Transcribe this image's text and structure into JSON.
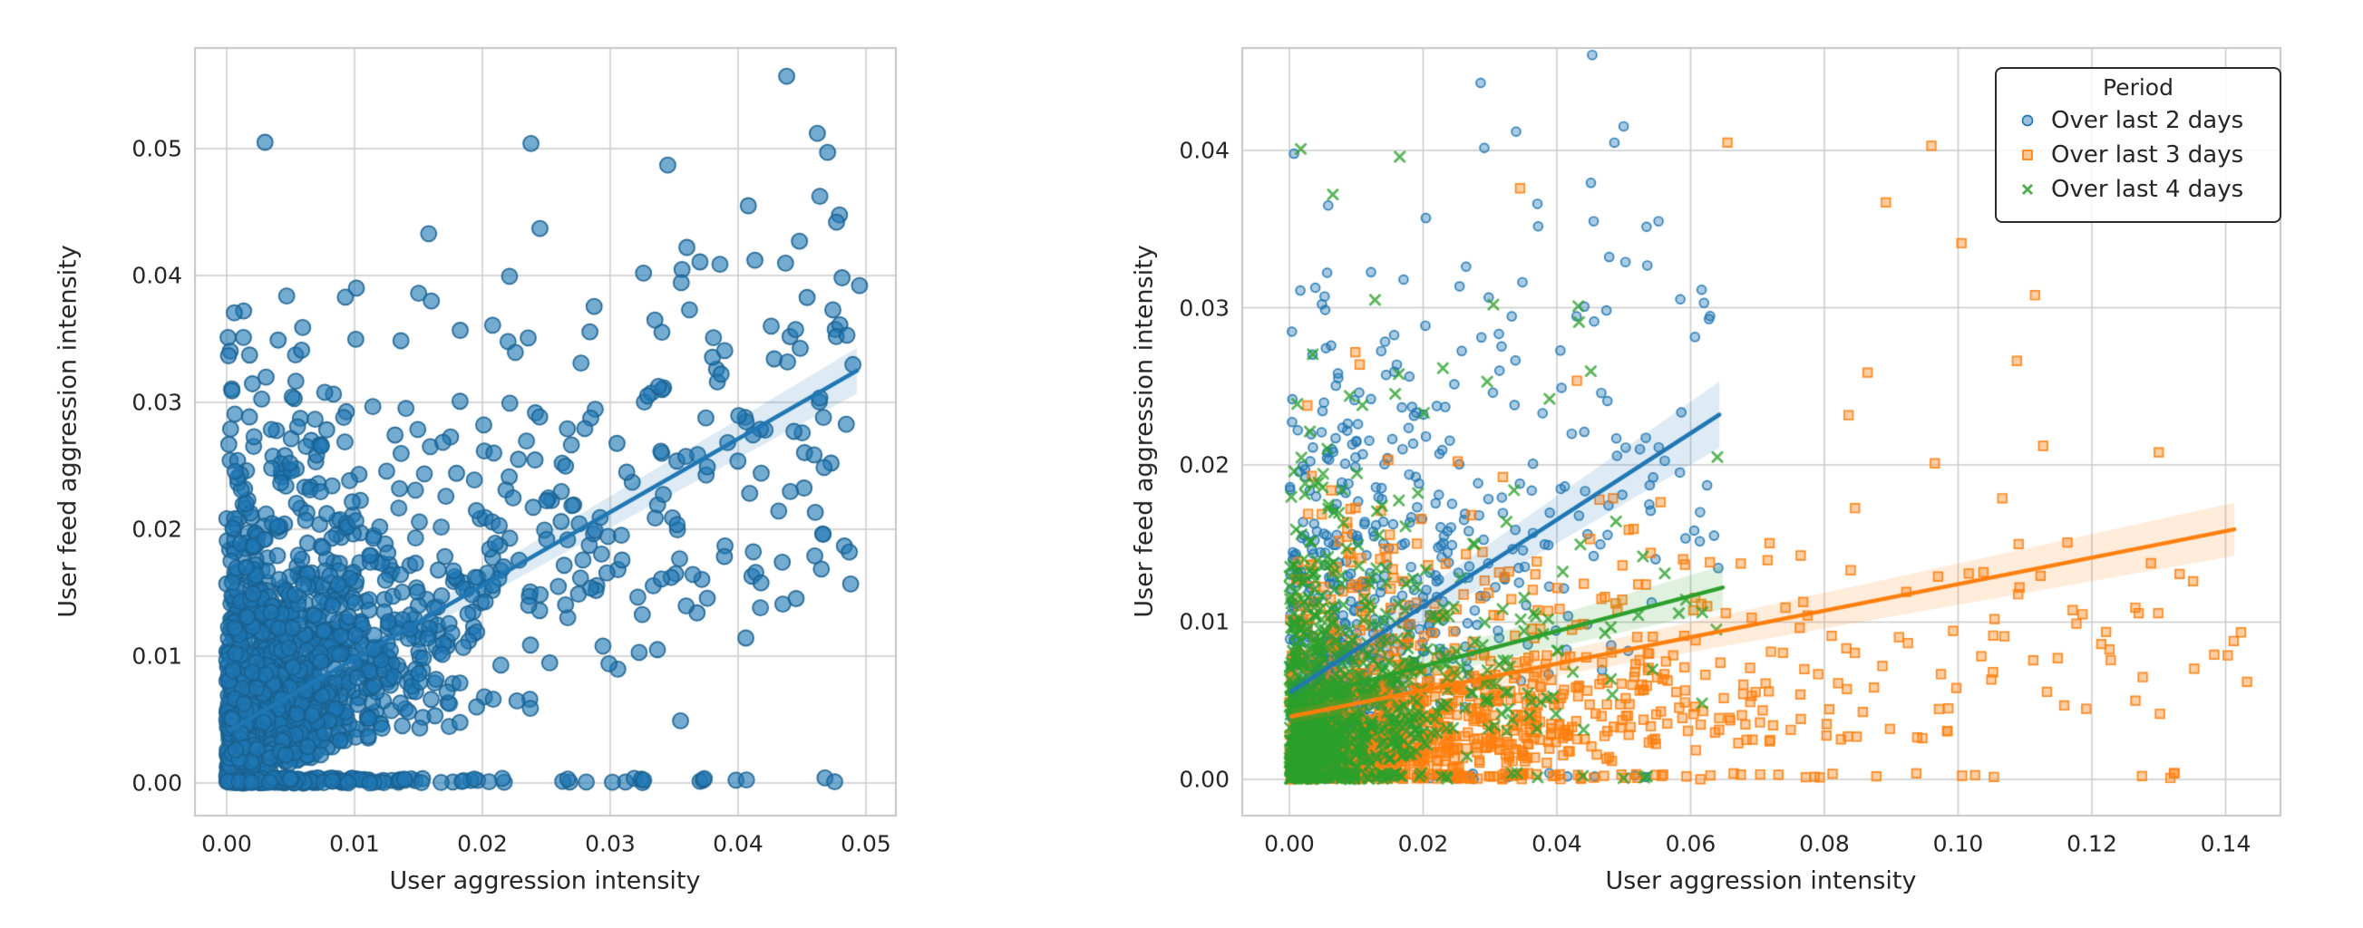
{
  "figure": {
    "background": "#ffffff"
  },
  "palette": {
    "blue": "#1f77b4",
    "orange": "#ff7f0e",
    "green": "#2ca02c",
    "grid": "#cbcbcb",
    "spine": "#c6c6c6",
    "text": "#262626",
    "legend_border": "#2b2b2b"
  },
  "chart_data": [
    {
      "type": "scatter",
      "panel": "left",
      "xlabel": "User aggression intensity",
      "ylabel": "User feed aggression intensity",
      "xlim": [
        -0.00248,
        0.05234
      ],
      "ylim": [
        -0.00257,
        0.05793
      ],
      "xticks": [
        0,
        0.01,
        0.02,
        0.03,
        0.04,
        0.05
      ],
      "xtick_labels": [
        "0.00",
        "0.01",
        "0.02",
        "0.03",
        "0.04",
        "0.05"
      ],
      "yticks": [
        0,
        0.01,
        0.02,
        0.03,
        0.04,
        0.05
      ],
      "ytick_labels": [
        "0.00",
        "0.01",
        "0.02",
        "0.03",
        "0.04",
        "0.05"
      ],
      "grid": true,
      "series": [
        {
          "marker": "circle",
          "color": "#1f77b4",
          "edge_color": "#19608f",
          "marker_radius_px": 8.5,
          "fill_alpha": 0.62,
          "edge_alpha": 0.9,
          "edge_width": 1.8,
          "line_width": 4.5,
          "ci_alpha": 0.15,
          "n_points": 1900,
          "seed": 7,
          "distribution": {
            "x_scale": 0.0052,
            "x_uniform_frac": 0.17,
            "x_max": 0.0493,
            "y_scale": 0.0072,
            "y_slope": 0.5,
            "y_zero_frac": 0.11,
            "y_cap0": 0.0375,
            "y_cap_slope": 0.22
          },
          "highlight_points": [
            [
              0.003,
              0.0505
            ],
            [
              0.0238,
              0.0504
            ],
            [
              0.0438,
              0.0557
            ],
            [
              0.0462,
              0.0512
            ],
            [
              0.047,
              0.0497
            ],
            [
              0.0477,
              0.0442
            ],
            [
              0.0448,
              0.0427
            ],
            [
              0.0158,
              0.0433
            ],
            [
              0.0245,
              0.0437
            ],
            [
              0.0408,
              0.0455
            ],
            [
              0.0362,
              0.0373
            ],
            [
              0.0495,
              0.0392
            ],
            [
              0.0487,
              0.0182
            ],
            [
              0.046,
              0.0179
            ],
            [
              0.0435,
              0.0141
            ],
            [
              0.0299,
              0.0094
            ],
            [
              0.0355,
              0.0049
            ],
            [
              0.0345,
              0.0487
            ]
          ],
          "regression": {
            "x": [
              0.0003,
              0.0493
            ],
            "y": [
              0.0042,
              0.0325
            ],
            "ci_halfwidth": [
              0.0004,
              0.0018
            ]
          }
        }
      ]
    },
    {
      "type": "scatter",
      "panel": "right",
      "xlabel": "User aggression intensity",
      "ylabel": "User feed aggression intensity",
      "xlim": [
        -0.00705,
        0.1482
      ],
      "ylim": [
        -0.00231,
        0.04652
      ],
      "xticks": [
        0,
        0.02,
        0.04,
        0.06,
        0.08,
        0.1,
        0.12,
        0.14
      ],
      "xtick_labels": [
        "0.00",
        "0.02",
        "0.04",
        "0.06",
        "0.08",
        "0.10",
        "0.12",
        "0.14"
      ],
      "yticks": [
        0,
        0.01,
        0.02,
        0.03,
        0.04
      ],
      "ytick_labels": [
        "0.00",
        "0.01",
        "0.02",
        "0.03",
        "0.04"
      ],
      "grid": true,
      "legend": {
        "title": "Period",
        "items": [
          {
            "label": "Over last 2 days",
            "marker": "circle",
            "color": "#1f77b4"
          },
          {
            "label": "Over last 3 days",
            "marker": "square",
            "color": "#ff7f0e"
          },
          {
            "label": "Over last 4 days",
            "marker": "x",
            "color": "#2ca02c"
          }
        ]
      },
      "series": [
        {
          "name": "Over last 2 days",
          "marker": "circle",
          "color": "#1f77b4",
          "edge_color": "#1f77b4",
          "marker_radius_px": 4.9,
          "fill_alpha": 0.38,
          "edge_alpha": 0.9,
          "edge_width": 1.7,
          "line_width": 4.5,
          "ci_alpha": 0.15,
          "n_points": 720,
          "seed": 13,
          "distribution": {
            "x_scale": 0.013,
            "x_uniform_frac": 0.1,
            "x_max": 0.0645,
            "y_scale": 0.0082,
            "y_slope": 0.3,
            "y_zero_frac": 0.07,
            "y_cap0": 0.031,
            "y_cap_slope": 0.35
          },
          "highlight_points": [
            [
              0.0286,
              0.0443
            ],
            [
              0.0339,
              0.0412
            ],
            [
              0.0007,
              0.0398
            ],
            [
              0.0058,
              0.0365
            ],
            [
              0.0486,
              0.0405
            ],
            [
              0.0455,
              0.0355
            ],
            [
              0.0552,
              0.0355
            ],
            [
              0.062,
              0.0303
            ],
            [
              0.0635,
              0.0155
            ],
            [
              0.0455,
              0.0142
            ]
          ],
          "regression": {
            "x": [
              0.0003,
              0.0643
            ],
            "y": [
              0.0056,
              0.0232
            ],
            "ci_halfwidth": [
              0.0005,
              0.0021
            ]
          }
        },
        {
          "name": "Over last 3 days",
          "marker": "square",
          "color": "#ff7f0e",
          "edge_color": "#ff7f0e",
          "marker_radius_px": 4.8,
          "fill_alpha": 0.38,
          "edge_alpha": 0.9,
          "edge_width": 1.7,
          "line_width": 4.5,
          "ci_alpha": 0.15,
          "n_points": 1250,
          "seed": 5,
          "distribution": {
            "x_scale": 0.024,
            "x_uniform_frac": 0.1,
            "x_max": 0.1432,
            "y_scale": 0.004,
            "y_slope": 0.05,
            "y_zero_frac": 0.13,
            "y_cap0": 0.03,
            "y_cap_slope": 0.08
          },
          "highlight_points": [
            [
              0.0655,
              0.0405
            ],
            [
              0.096,
              0.0403
            ],
            [
              0.0892,
              0.0367
            ],
            [
              0.0345,
              0.0376
            ],
            [
              0.1115,
              0.0308
            ],
            [
              0.13,
              0.0208
            ],
            [
              0.1412,
              0.0088
            ],
            [
              0.1432,
              0.0062
            ],
            [
              0.1276,
              0.0065
            ],
            [
              0.1186,
              0.0105
            ],
            [
              0.1005,
              0.0341
            ]
          ],
          "regression": {
            "x": [
              0.0003,
              0.1413
            ],
            "y": [
              0.004,
              0.0159
            ],
            "ci_halfwidth": [
              0.0004,
              0.0017
            ]
          }
        },
        {
          "name": "Over last 4 days",
          "marker": "x",
          "color": "#2ca02c",
          "edge_color": "#2ca02c",
          "marker_radius_px": 5.2,
          "fill_alpha": 0,
          "edge_alpha": 0.78,
          "edge_width": 2.8,
          "line_width": 4.5,
          "ci_alpha": 0.15,
          "n_points": 1050,
          "seed": 9,
          "distribution": {
            "x_scale": 0.0075,
            "x_uniform_frac": 0.07,
            "x_max": 0.0655,
            "y_scale": 0.0048,
            "y_slope": 0.1,
            "y_zero_frac": 0.13,
            "y_cap0": 0.028,
            "y_cap_slope": 0.15
          },
          "highlight_points": [
            [
              0.0017,
              0.0401
            ],
            [
              0.0165,
              0.0396
            ],
            [
              0.0065,
              0.0372
            ],
            [
              0.0128,
              0.0305
            ],
            [
              0.0305,
              0.0302
            ],
            [
              0.064,
              0.0205
            ],
            [
              0.0432,
              0.0301
            ],
            [
              0.0389,
              0.0242
            ]
          ],
          "regression": {
            "x": [
              0.0003,
              0.0648
            ],
            "y": [
              0.005,
              0.0122
            ],
            "ci_halfwidth": [
              0.0004,
              0.0014
            ]
          }
        }
      ]
    }
  ]
}
